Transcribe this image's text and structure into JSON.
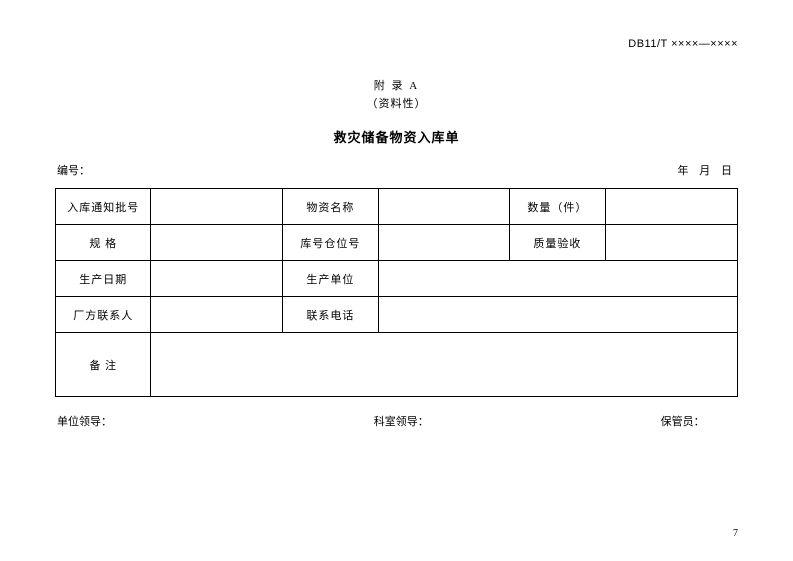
{
  "document_code": "DB11/T ××××—××××",
  "appendix": {
    "label": "附 录 A",
    "subtitle": "（资料性）"
  },
  "title": "救灾储备物资入库单",
  "meta": {
    "number_label": "编号：",
    "date_label": "年  月  日"
  },
  "table": {
    "rows": [
      [
        "入库通知批号",
        "",
        "物资名称",
        "",
        "数量（件）",
        ""
      ],
      [
        "规    格",
        "",
        "库号仓位号",
        "",
        "质量验收",
        ""
      ],
      [
        "生产日期",
        "",
        "生产单位",
        "",
        "",
        ""
      ],
      [
        "厂方联系人",
        "",
        "联系电话",
        "",
        "",
        ""
      ]
    ],
    "remark_label": "备   注",
    "remark_value": ""
  },
  "footer": {
    "leader": "单位领导：",
    "dept_leader": "科室领导：",
    "keeper": "保管员："
  },
  "page_number": "7",
  "colors": {
    "background": "#ffffff",
    "text": "#000000",
    "border": "#000000"
  },
  "typography": {
    "base_fontsize": 11,
    "title_fontsize": 13,
    "font_family": "SimSun"
  }
}
